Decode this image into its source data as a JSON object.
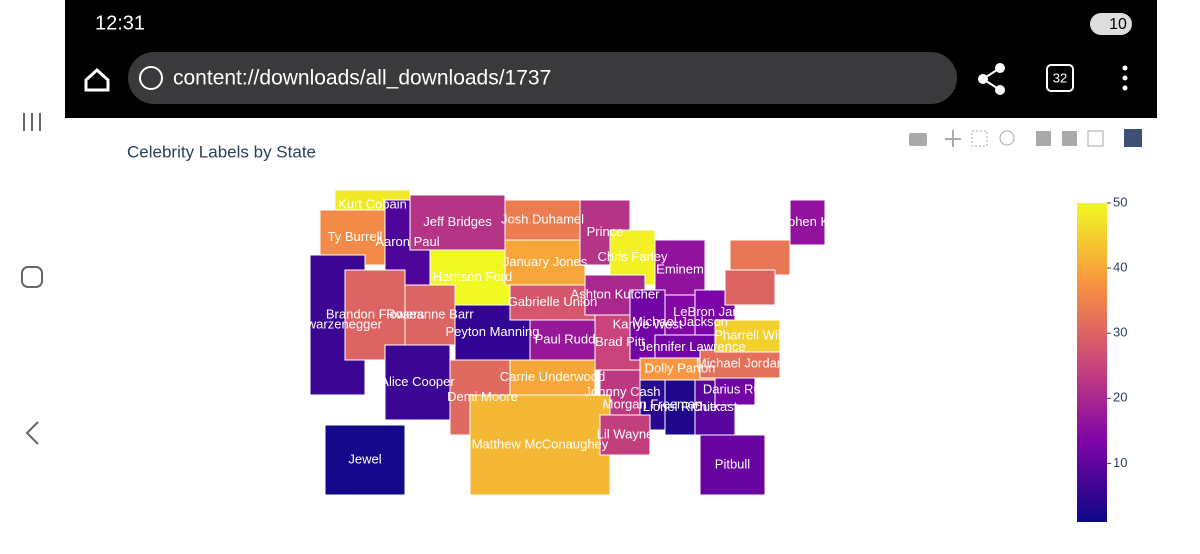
{
  "status_bar": {
    "time": "12:31",
    "battery": "10"
  },
  "browser": {
    "url": "content://downloads/all_downloads/1737",
    "tab_count": "32"
  },
  "chart_data": {
    "type": "choropleth",
    "title": "Celebrity Labels by State",
    "states": [
      {
        "label": "Kurt Cobain",
        "value": 48
      },
      {
        "label": "Ty Burrell",
        "value": 36
      },
      {
        "label": "Aaron Paul",
        "value": 8
      },
      {
        "label": "Jeff Bridges",
        "value": 22
      },
      {
        "label": "Harrison Ford",
        "value": 50
      },
      {
        "label": "Josh Duhamel",
        "value": 34
      },
      {
        "label": "January Jones",
        "value": 40
      },
      {
        "label": "Prince",
        "value": 22
      },
      {
        "label": "Chris Farley",
        "value": 49
      },
      {
        "label": "Eminem",
        "value": 16
      },
      {
        "label": "chwarzenegger",
        "value": 6
      },
      {
        "label": "Brandon Flowers",
        "value": 30
      },
      {
        "label": "Roseanne Barr",
        "value": 30
      },
      {
        "label": "Peyton Manning",
        "value": 5
      },
      {
        "label": "Gabrielle Union",
        "value": 28
      },
      {
        "label": "Ashton Kutcher",
        "value": 20
      },
      {
        "label": "Paul Rudd",
        "value": 17
      },
      {
        "label": "Brad Pitt",
        "value": 25
      },
      {
        "label": "Kanye West",
        "value": 12
      },
      {
        "label": "Michael Jackson",
        "value": 14
      },
      {
        "label": "LeBron James",
        "value": 13
      },
      {
        "label": "Jennifer Lawrence",
        "value": 12
      },
      {
        "label": "Alice Cooper",
        "value": 6
      },
      {
        "label": "Demi Moore",
        "value": 31
      },
      {
        "label": "Carrie Underwood",
        "value": 40
      },
      {
        "label": "Johnny Cash",
        "value": 23
      },
      {
        "label": "Dolly Parton",
        "value": 38
      },
      {
        "label": "Matthew McConaughey",
        "value": 42
      },
      {
        "label": "Morgan Freeman",
        "value": 4
      },
      {
        "label": "Lil Wayne",
        "value": 24
      },
      {
        "label": "Lionel Richie",
        "value": 3
      },
      {
        "label": "Outkast",
        "value": 9
      },
      {
        "label": "Darius Ruc",
        "value": 12
      },
      {
        "label": "Michael Jordan",
        "value": 32
      },
      {
        "label": "Pharrell Wil",
        "value": 45
      },
      {
        "label": "Pitbull",
        "value": 11
      },
      {
        "label": "Jewel",
        "value": 2
      },
      {
        "label": "Stephen King",
        "value": 16
      },
      {
        "label": null,
        "value": 33
      },
      {
        "label": null,
        "value": 30
      }
    ],
    "colorbar": {
      "range": [
        1,
        50
      ],
      "ticks": [
        10,
        20,
        30,
        40,
        50
      ]
    }
  }
}
